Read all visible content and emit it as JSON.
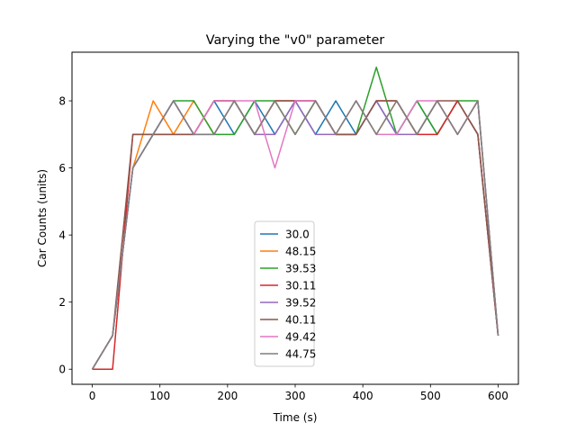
{
  "chart_data": {
    "type": "line",
    "title": "Varying the \"v0\" parameter",
    "xlabel": "Time (s)",
    "ylabel": "Car Counts (units)",
    "xlim": [
      -30,
      630
    ],
    "ylim": [
      -0.45,
      9.45
    ],
    "xticks": [
      0,
      100,
      200,
      300,
      400,
      500,
      600
    ],
    "yticks": [
      0,
      2,
      4,
      6,
      8
    ],
    "grid": false,
    "legend_position": "lower-center",
    "x": [
      0,
      30,
      60,
      90,
      120,
      150,
      180,
      210,
      240,
      270,
      300,
      330,
      360,
      390,
      420,
      450,
      480,
      510,
      540,
      570,
      600
    ],
    "series": [
      {
        "name": "30.0",
        "color": "#1f77b4",
        "values": [
          0,
          1,
          6,
          7,
          8,
          7,
          8,
          7,
          8,
          7,
          8,
          7,
          8,
          7,
          8,
          7,
          8,
          7,
          8,
          7,
          1
        ]
      },
      {
        "name": "48.15",
        "color": "#ff7f0e",
        "values": [
          0,
          1,
          6,
          8,
          7,
          8,
          7,
          8,
          7,
          8,
          7,
          8,
          7,
          8,
          7,
          8,
          7,
          8,
          7,
          8,
          1
        ]
      },
      {
        "name": "39.53",
        "color": "#2ca02c",
        "values": [
          0,
          1,
          6,
          7,
          8,
          8,
          7,
          7,
          8,
          8,
          7,
          8,
          7,
          7,
          9,
          7,
          8,
          7,
          8,
          8,
          1
        ]
      },
      {
        "name": "30.11",
        "color": "#d62728",
        "values": [
          0,
          0,
          7,
          7,
          7,
          7,
          8,
          8,
          7,
          8,
          8,
          8,
          7,
          7,
          8,
          8,
          7,
          7,
          8,
          7,
          1
        ]
      },
      {
        "name": "39.52",
        "color": "#9467bd",
        "values": [
          0,
          1,
          6,
          7,
          8,
          7,
          7,
          8,
          7,
          7,
          8,
          7,
          7,
          7,
          8,
          7,
          7,
          8,
          7,
          8,
          1
        ]
      },
      {
        "name": "40.11",
        "color": "#8c564b",
        "values": [
          0,
          1,
          7,
          7,
          7,
          7,
          8,
          8,
          7,
          8,
          8,
          8,
          7,
          7,
          8,
          8,
          7,
          8,
          8,
          7,
          1
        ]
      },
      {
        "name": "49.42",
        "color": "#e377c2",
        "values": [
          0,
          1,
          6,
          7,
          8,
          7,
          8,
          8,
          8,
          6,
          8,
          8,
          7,
          8,
          7,
          7,
          8,
          8,
          7,
          8,
          1
        ]
      },
      {
        "name": "44.75",
        "color": "#7f7f7f",
        "values": [
          0,
          1,
          6,
          7,
          8,
          7,
          7,
          8,
          7,
          8,
          7,
          8,
          7,
          8,
          7,
          8,
          7,
          8,
          7,
          8,
          1
        ]
      }
    ]
  }
}
